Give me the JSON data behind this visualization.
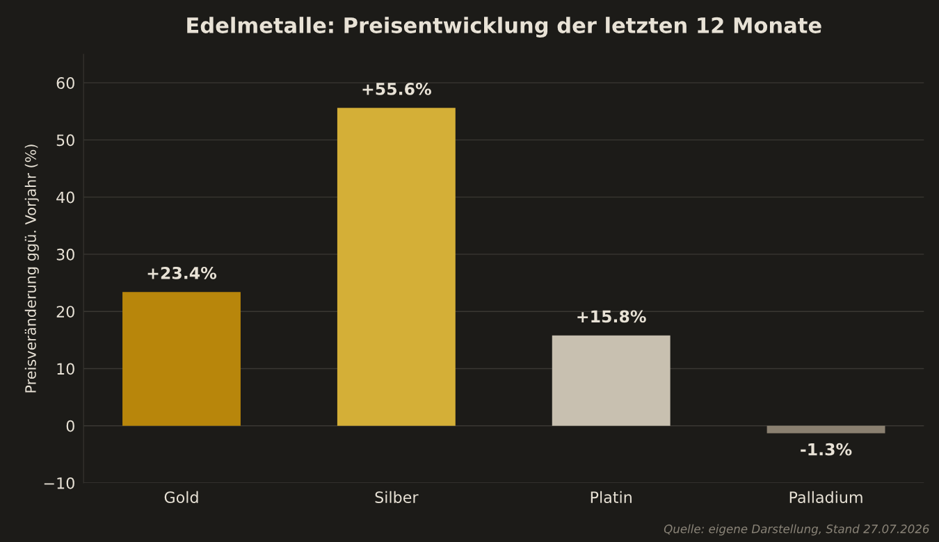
{
  "chart_data": {
    "type": "bar",
    "title": "Edelmetalle: Preisentwicklung der letzten 12 Monate",
    "ylabel": "Preisveränderung ggü. Vorjahr (%)",
    "categories": [
      "Gold",
      "Silber",
      "Platin",
      "Palladium"
    ],
    "values": [
      23.4,
      55.6,
      15.8,
      -1.3
    ],
    "colors": [
      "#b8860b",
      "#d4af37",
      "#c8c0b0",
      "#8a8070"
    ],
    "value_labels": [
      "+23.4%",
      "+55.6%",
      "+15.8%",
      "-1.3%"
    ],
    "ylim": [
      -10,
      65
    ],
    "yticks": [
      {
        "value": -10,
        "label": "−10"
      },
      0,
      10,
      20,
      30,
      40,
      50,
      60
    ],
    "grid": "y",
    "annotations": [
      "Quelle: eigene Darstellung, Stand 27.07.2026"
    ]
  }
}
